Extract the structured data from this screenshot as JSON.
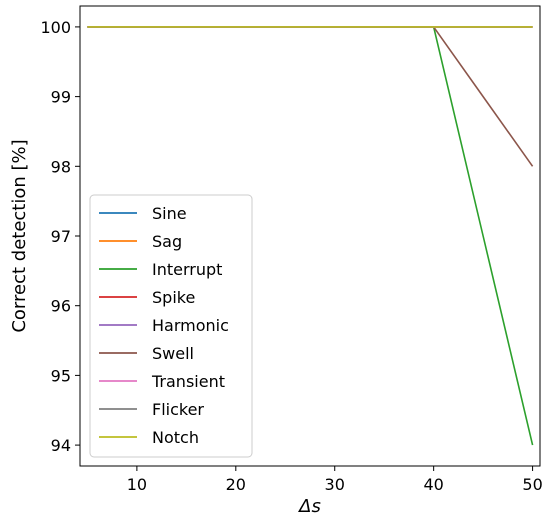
{
  "chart_data": {
    "type": "line",
    "xlabel": "Δs",
    "ylabel": "Correct detection [%]",
    "xlim": [
      4.25,
      50.75
    ],
    "ylim": [
      93.7,
      100.3
    ],
    "xticks": [
      10,
      20,
      30,
      40,
      50
    ],
    "yticks": [
      94,
      95,
      96,
      97,
      98,
      99,
      100
    ],
    "x": [
      5,
      10,
      15,
      20,
      25,
      30,
      35,
      40,
      45,
      50
    ],
    "grid": false,
    "legend_position": "lower-left",
    "series": [
      {
        "name": "Sine",
        "color": "#1f77b4",
        "values": [
          100,
          100,
          100,
          100,
          100,
          100,
          100,
          100,
          100,
          100
        ]
      },
      {
        "name": "Sag",
        "color": "#ff7f0e",
        "values": [
          100,
          100,
          100,
          100,
          100,
          100,
          100,
          100,
          100,
          100
        ]
      },
      {
        "name": "Interrupt",
        "color": "#2ca02c",
        "values": [
          100,
          100,
          100,
          100,
          100,
          100,
          100,
          100,
          97,
          94
        ]
      },
      {
        "name": "Spike",
        "color": "#d62728",
        "values": [
          100,
          100,
          100,
          100,
          100,
          100,
          100,
          100,
          100,
          100
        ]
      },
      {
        "name": "Harmonic",
        "color": "#9467bd",
        "values": [
          100,
          100,
          100,
          100,
          100,
          100,
          100,
          100,
          100,
          100
        ]
      },
      {
        "name": "Swell",
        "color": "#8c564b",
        "values": [
          100,
          100,
          100,
          100,
          100,
          100,
          100,
          100,
          99,
          98
        ]
      },
      {
        "name": "Transient",
        "color": "#e377c2",
        "values": [
          100,
          100,
          100,
          100,
          100,
          100,
          100,
          100,
          100,
          100
        ]
      },
      {
        "name": "Flicker",
        "color": "#7f7f7f",
        "values": [
          100,
          100,
          100,
          100,
          100,
          100,
          100,
          100,
          100,
          100
        ]
      },
      {
        "name": "Notch",
        "color": "#bcbd22",
        "values": [
          100,
          100,
          100,
          100,
          100,
          100,
          100,
          100,
          100,
          100
        ]
      }
    ]
  }
}
